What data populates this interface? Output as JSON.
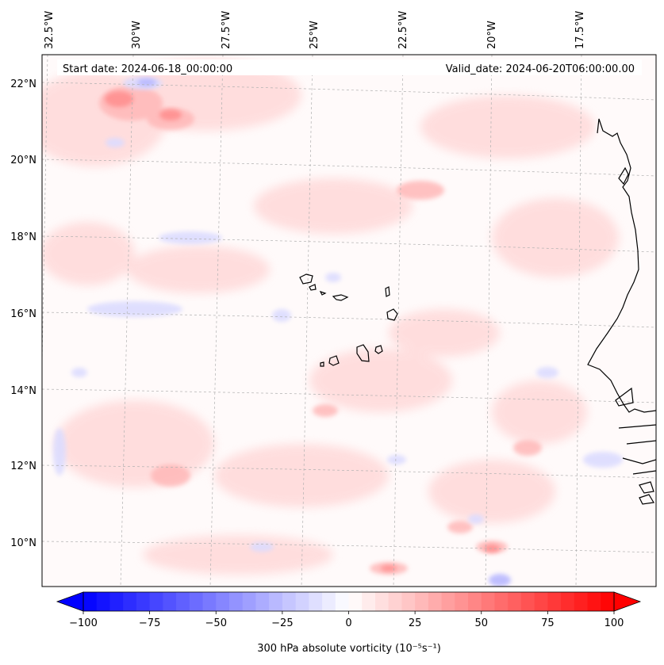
{
  "map": {
    "title_start": "Start date: 2024-06-18_00:00:00",
    "title_valid": "Valid_date: 2024-06-20T06:00:00.00",
    "lon_labels": [
      "32.5°W",
      "30°W",
      "27.5°W",
      "25°W",
      "22.5°W",
      "20°W",
      "17.5°W"
    ],
    "lat_labels": [
      "22°N",
      "20°N",
      "18°N",
      "16°N",
      "14°N",
      "12°N",
      "10°N"
    ],
    "features": [
      "Cape Verde islands",
      "West African coastline"
    ]
  },
  "colorbar": {
    "label": "300 hPa absolute vorticity (10⁻⁵s⁻¹)",
    "ticks": [
      "−100",
      "−75",
      "−50",
      "−25",
      "0",
      "25",
      "50",
      "75",
      "100"
    ],
    "min": -100,
    "max": 100,
    "step": 5,
    "colormap": "bwr"
  },
  "colors": {
    "frame": "#000000",
    "grid": "#b0b0b0",
    "coast": "#000000",
    "positive_max": "#ff0000",
    "negative_max": "#0000ff"
  }
}
